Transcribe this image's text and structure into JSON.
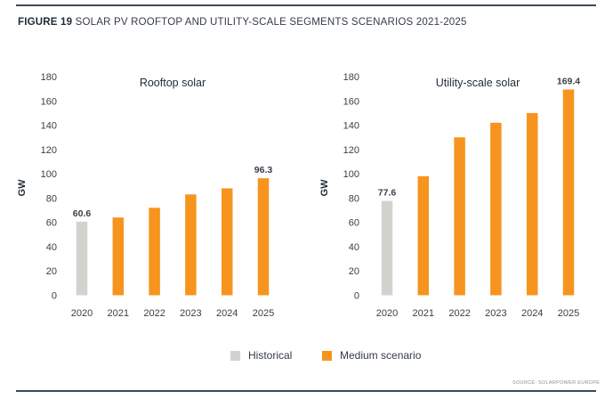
{
  "figure": {
    "number": "FIGURE 19",
    "title": "SOLAR PV ROOFTOP AND UTILITY-SCALE SEGMENTS SCENARIOS 2021-2025",
    "source": "SOURCE: SOLARPOWER EUROPE"
  },
  "legend": [
    {
      "label": "Historical",
      "color": "#d4d2cf"
    },
    {
      "label": "Medium scenario",
      "color": "#f7941d"
    }
  ],
  "chart_data": [
    {
      "type": "bar",
      "title": "Rooftop solar",
      "ylabel": "GW",
      "xlabel": "",
      "ylim": [
        0,
        180
      ],
      "yticks": [
        0,
        20,
        40,
        60,
        80,
        100,
        120,
        140,
        160,
        180
      ],
      "categories": [
        "2020",
        "2021",
        "2022",
        "2023",
        "2024",
        "2025"
      ],
      "values": [
        60.6,
        64,
        72,
        83,
        88,
        96.3
      ],
      "kinds": [
        "historical",
        "medium",
        "medium",
        "medium",
        "medium",
        "medium"
      ],
      "data_labels": [
        "60.6",
        "",
        "",
        "",
        "",
        "96.3"
      ],
      "grid": false
    },
    {
      "type": "bar",
      "title": "Utility-scale solar",
      "ylabel": "GW",
      "xlabel": "",
      "ylim": [
        0,
        180
      ],
      "yticks": [
        0,
        20,
        40,
        60,
        80,
        100,
        120,
        140,
        160,
        180
      ],
      "categories": [
        "2020",
        "2021",
        "2022",
        "2023",
        "2024",
        "2025"
      ],
      "values": [
        77.6,
        98,
        130,
        142,
        150,
        169.4
      ],
      "kinds": [
        "historical",
        "medium",
        "medium",
        "medium",
        "medium",
        "medium"
      ],
      "data_labels": [
        "77.6",
        "",
        "",
        "",
        "",
        "169.4"
      ],
      "grid": false
    }
  ]
}
